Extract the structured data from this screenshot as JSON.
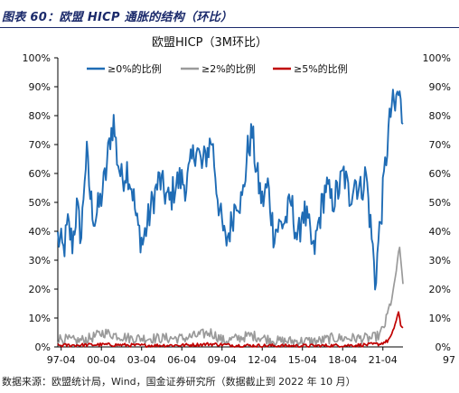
{
  "caption": "图表 60：欧盟 HICP 通胀的结构（环比）",
  "source": "数据来源：欧盟统计局，Wind，国金证券研究所（数据截止到 2022 年 10 月）",
  "chart_data": {
    "type": "line",
    "title": "欧盟HICP（3M环比）",
    "xlabel": "",
    "ylabel": "",
    "ylim": [
      0,
      100
    ],
    "y_ticks": [
      "0%",
      "10%",
      "20%",
      "30%",
      "40%",
      "50%",
      "60%",
      "70%",
      "80%",
      "90%",
      "100%"
    ],
    "x_ticks": [
      "97-04",
      "00-04",
      "03-04",
      "06-04",
      "09-04",
      "12-04",
      "15-04",
      "18-04",
      "21-04"
    ],
    "right_axis_ticks": [
      "0%",
      "10%",
      "20%",
      "30%",
      "40%",
      "50%",
      "60%",
      "70%",
      "80%",
      "90%",
      "100%"
    ],
    "right_axis_partial_tick": "97",
    "legend_position": "top",
    "x_range": [
      "1997-01",
      "2022-10"
    ],
    "series": [
      {
        "name": "≥0%的比例",
        "color": "#1f6cb5",
        "anchors": [
          [
            "1997-01",
            38
          ],
          [
            "1997-06",
            33
          ],
          [
            "1997-10",
            42
          ],
          [
            "1998-02",
            36
          ],
          [
            "1998-06",
            48
          ],
          [
            "1998-10",
            38
          ],
          [
            "1999-01",
            60
          ],
          [
            "1999-03",
            66
          ],
          [
            "1999-06",
            52
          ],
          [
            "1999-10",
            44
          ],
          [
            "2000-03",
            50
          ],
          [
            "2000-08",
            60
          ],
          [
            "2000-12",
            73
          ],
          [
            "2001-03",
            78
          ],
          [
            "2001-06",
            66
          ],
          [
            "2001-10",
            58
          ],
          [
            "2002-03",
            62
          ],
          [
            "2002-08",
            54
          ],
          [
            "2002-12",
            42
          ],
          [
            "2003-05",
            36
          ],
          [
            "2003-10",
            44
          ],
          [
            "2004-03",
            52
          ],
          [
            "2004-08",
            58
          ],
          [
            "2004-12",
            54
          ],
          [
            "2005-05",
            50
          ],
          [
            "2005-10",
            56
          ],
          [
            "2006-03",
            58
          ],
          [
            "2006-08",
            56
          ],
          [
            "2007-01",
            64
          ],
          [
            "2007-05",
            70
          ],
          [
            "2007-10",
            62
          ],
          [
            "2008-03",
            68
          ],
          [
            "2008-07",
            72
          ],
          [
            "2008-11",
            56
          ],
          [
            "2009-03",
            44
          ],
          [
            "2009-07",
            36
          ],
          [
            "2009-12",
            42
          ],
          [
            "2010-05",
            52
          ],
          [
            "2010-10",
            50
          ],
          [
            "2011-03",
            68
          ],
          [
            "2011-07",
            74
          ],
          [
            "2011-11",
            60
          ],
          [
            "2012-04",
            50
          ],
          [
            "2012-09",
            56
          ],
          [
            "2013-02",
            40
          ],
          [
            "2013-08",
            42
          ],
          [
            "2014-01",
            44
          ],
          [
            "2014-06",
            50
          ],
          [
            "2014-12",
            36
          ],
          [
            "2015-04",
            48
          ],
          [
            "2015-09",
            42
          ],
          [
            "2016-02",
            32
          ],
          [
            "2016-07",
            44
          ],
          [
            "2017-01",
            56
          ],
          [
            "2017-06",
            50
          ],
          [
            "2017-12",
            54
          ],
          [
            "2018-05",
            60
          ],
          [
            "2018-10",
            52
          ],
          [
            "2019-03",
            58
          ],
          [
            "2019-08",
            54
          ],
          [
            "2020-01",
            60
          ],
          [
            "2020-04",
            46
          ],
          [
            "2020-07",
            34
          ],
          [
            "2020-09",
            22
          ],
          [
            "2020-12",
            36
          ],
          [
            "2021-03",
            48
          ],
          [
            "2021-06",
            62
          ],
          [
            "2021-09",
            74
          ],
          [
            "2021-12",
            84
          ],
          [
            "2022-03",
            82
          ],
          [
            "2022-05",
            88
          ],
          [
            "2022-07",
            86
          ],
          [
            "2022-09",
            80
          ],
          [
            "2022-10",
            80
          ]
        ],
        "noise": 6
      },
      {
        "name": "≥2%的比例",
        "color": "#9a9a9a",
        "anchors": [
          [
            "1997-01",
            3
          ],
          [
            "1998-06",
            2
          ],
          [
            "1999-06",
            3
          ],
          [
            "2000-06",
            5
          ],
          [
            "2001-06",
            4
          ],
          [
            "2002-06",
            3
          ],
          [
            "2003-06",
            3
          ],
          [
            "2004-06",
            3
          ],
          [
            "2005-06",
            3
          ],
          [
            "2006-06",
            3
          ],
          [
            "2007-06",
            4
          ],
          [
            "2008-06",
            5
          ],
          [
            "2009-06",
            2
          ],
          [
            "2010-06",
            3
          ],
          [
            "2011-06",
            4
          ],
          [
            "2012-06",
            3
          ],
          [
            "2013-06",
            2
          ],
          [
            "2014-06",
            2
          ],
          [
            "2015-06",
            2
          ],
          [
            "2016-06",
            2
          ],
          [
            "2017-06",
            3
          ],
          [
            "2018-06",
            3
          ],
          [
            "2019-06",
            3
          ],
          [
            "2020-06",
            3
          ],
          [
            "2021-01",
            4
          ],
          [
            "2021-06",
            8
          ],
          [
            "2021-10",
            14
          ],
          [
            "2022-02",
            20
          ],
          [
            "2022-05",
            30
          ],
          [
            "2022-07",
            33
          ],
          [
            "2022-09",
            26
          ],
          [
            "2022-10",
            23
          ]
        ],
        "noise": 1.8
      },
      {
        "name": "≥5%的比例",
        "color": "#c00000",
        "anchors": [
          [
            "1997-01",
            0.5
          ],
          [
            "2000-06",
            0.8
          ],
          [
            "2003-06",
            0.5
          ],
          [
            "2006-06",
            0.6
          ],
          [
            "2008-06",
            1
          ],
          [
            "2010-06",
            0.5
          ],
          [
            "2013-06",
            0.4
          ],
          [
            "2016-06",
            0.4
          ],
          [
            "2019-06",
            0.6
          ],
          [
            "2021-01",
            1
          ],
          [
            "2021-08",
            2
          ],
          [
            "2021-12",
            4
          ],
          [
            "2022-03",
            8
          ],
          [
            "2022-06",
            12
          ],
          [
            "2022-08",
            7
          ],
          [
            "2022-10",
            7
          ]
        ],
        "noise": 0.6
      }
    ]
  }
}
